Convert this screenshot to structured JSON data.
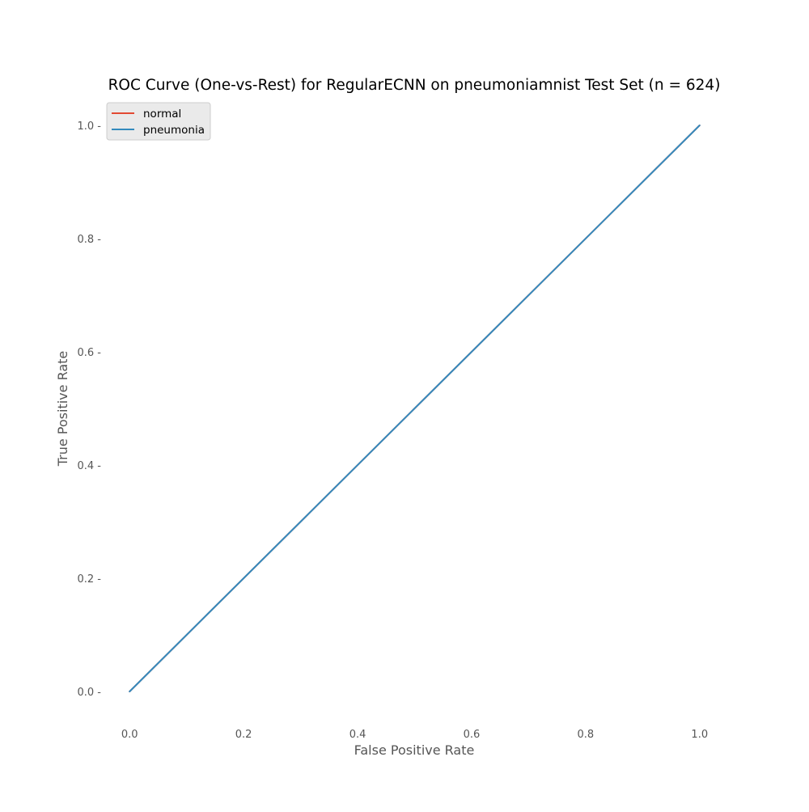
{
  "chart_data": {
    "type": "line",
    "title": "ROC Curve (One-vs-Rest) for RegularECNN on pneumoniamnist Test Set (n = 624)",
    "xlabel": "False Positive Rate",
    "ylabel": "True Positive Rate",
    "xlim": [
      -0.05,
      1.05
    ],
    "ylim": [
      -0.05,
      1.05
    ],
    "xticks": [
      0.0,
      0.2,
      0.4,
      0.6,
      0.8,
      1.0
    ],
    "yticks": [
      0.0,
      0.2,
      0.4,
      0.6,
      0.8,
      1.0
    ],
    "xtick_labels": [
      "0.0",
      "0.2",
      "0.4",
      "0.6",
      "0.8",
      "1.0"
    ],
    "ytick_labels": [
      "0.0 -",
      "0.2 -",
      "0.4 -",
      "0.6 -",
      "0.8 -",
      "1.0 -"
    ],
    "grid": false,
    "legend_position": "top-left",
    "series": [
      {
        "name": "normal",
        "color": "#E24A33",
        "x": [
          0.0,
          1.0
        ],
        "y": [
          0.0,
          1.0
        ]
      },
      {
        "name": "pneumonia",
        "color": "#348ABD",
        "x": [
          0.0,
          1.0
        ],
        "y": [
          0.0,
          1.0
        ]
      }
    ]
  }
}
